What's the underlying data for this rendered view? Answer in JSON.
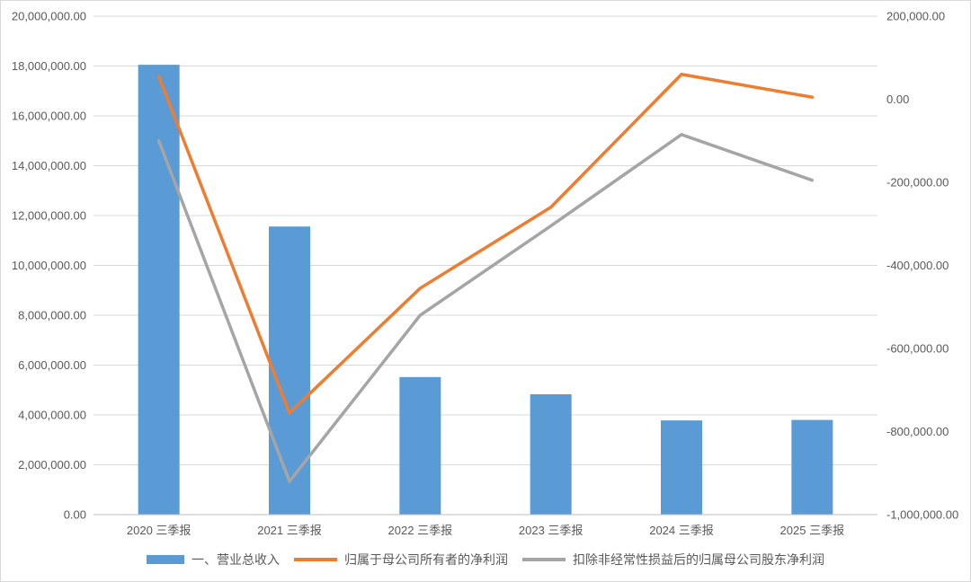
{
  "chart_data": {
    "type": "bar+line",
    "categories": [
      "2020 三季报",
      "2021 三季报",
      "2022 三季报",
      "2023 三季报",
      "2024 三季报",
      "2025 三季报"
    ],
    "series": [
      {
        "name": "一、营业总收入",
        "kind": "bar",
        "axis": "left",
        "color": "#5B9BD5",
        "values": [
          18050000,
          11560000,
          5520000,
          4830000,
          3780000,
          3800000
        ]
      },
      {
        "name": "归属于母公司所有者的净利润",
        "kind": "line",
        "axis": "right",
        "color": "#ED7D31",
        "values": [
          55000,
          -755000,
          -455000,
          -260000,
          60000,
          5000
        ]
      },
      {
        "name": "扣除非经常性损益后的归属母公司股东净利润",
        "kind": "line",
        "axis": "right",
        "color": "#A5A5A5",
        "values": [
          -100000,
          -920000,
          -520000,
          -305000,
          -85000,
          -195000
        ]
      }
    ],
    "y_left": {
      "min": 0,
      "max": 20000000,
      "step": 2000000,
      "tick_labels": [
        "0.00",
        "2,000,000.00",
        "4,000,000.00",
        "6,000,000.00",
        "8,000,000.00",
        "10,000,000.00",
        "12,000,000.00",
        "14,000,000.00",
        "16,000,000.00",
        "18,000,000.00",
        "20,000,000.00"
      ]
    },
    "y_right": {
      "min": -1000000,
      "max": 200000,
      "step": 200000,
      "tick_labels": [
        "-1,000,000.00",
        "-800,000.00",
        "-600,000.00",
        "-400,000.00",
        "-200,000.00",
        "0.00",
        "200,000.00"
      ]
    },
    "grid": true,
    "legend_position": "bottom"
  }
}
